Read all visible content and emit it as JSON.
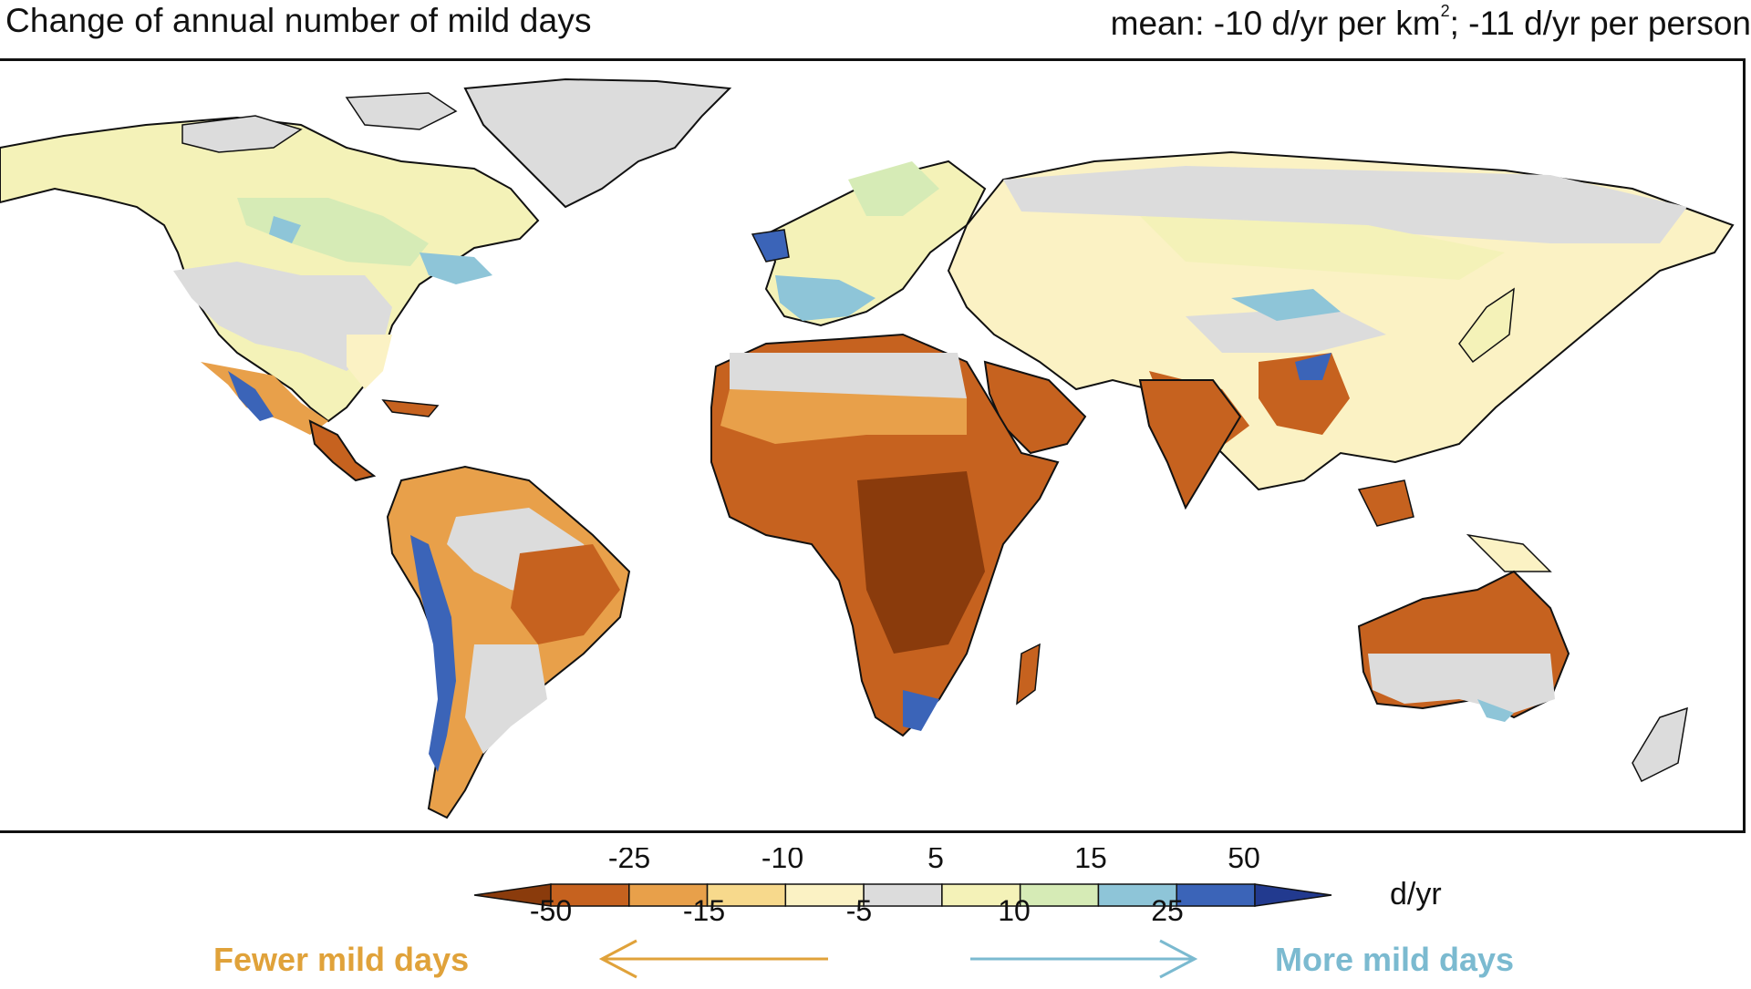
{
  "title": "Change of annual number of mild days",
  "mean_text": {
    "prefix": "mean: -10 d/yr per km",
    "exponent": "2",
    "suffix": "; -11 d/yr per person"
  },
  "colorbar": {
    "unit": "d/yr",
    "upper_ticks": [
      "-25",
      "-10",
      "5",
      "15",
      "50"
    ],
    "lower_ticks": [
      "-50",
      "-15",
      "-5",
      "10",
      "25"
    ],
    "colors": [
      "#8a3b0c",
      "#c6621f",
      "#e8a04a",
      "#f7d98c",
      "#fbf2c4",
      "#dcdcdc",
      "#f4f2b8",
      "#d6ebb6",
      "#8ec5d8",
      "#3b64b8",
      "#223a8f"
    ]
  },
  "legend_labels": {
    "fewer": "Fewer mild days",
    "more": "More mild days"
  },
  "legend_colors": {
    "fewer": "#e0a23a",
    "more": "#7bbad0"
  }
}
